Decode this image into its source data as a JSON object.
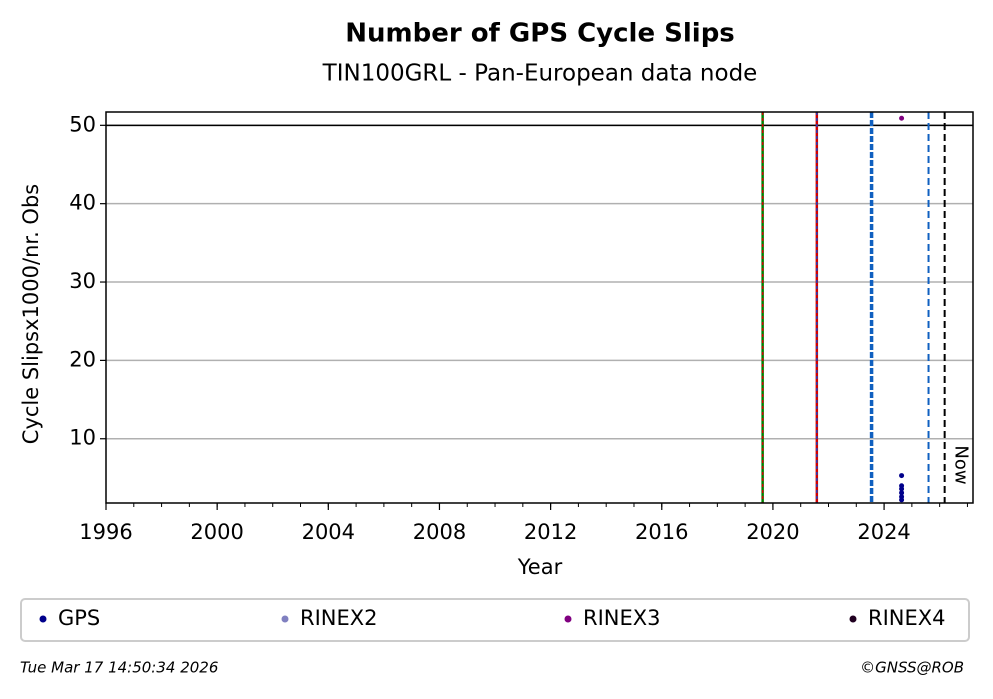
{
  "chart_data": {
    "type": "scatter",
    "title": "Number of GPS Cycle Slips",
    "subtitle": "TIN100GRL - Pan-European data node",
    "xlabel": "Year",
    "ylabel": "Cycle Slipsx1000/nr. Obs",
    "xlim": [
      1996,
      2027.2
    ],
    "ylim": [
      1.8,
      51.7
    ],
    "xticks": [
      1996,
      2000,
      2004,
      2008,
      2012,
      2016,
      2020,
      2024
    ],
    "xminor_step": 1,
    "yticks": [
      10,
      20,
      30,
      40,
      50
    ],
    "grid": true,
    "hlines": [
      50
    ],
    "vlines": [
      {
        "x": 2019.63,
        "color": "#008000",
        "dash_color": "#d00000",
        "style": "solid"
      },
      {
        "x": 2021.58,
        "color": "#d00000",
        "dash_color": "#2040c0",
        "style": "solid"
      },
      {
        "x": 2023.55,
        "color": "#1060c0",
        "style": "dashed-thick"
      },
      {
        "x": 2025.6,
        "color": "#1060c0",
        "style": "dashed"
      },
      {
        "x": 2026.18,
        "color": "#000000",
        "style": "dashed"
      }
    ],
    "now_label": "Now",
    "series": [
      {
        "name": "GPS",
        "color": "#00008b",
        "x": [
          2024.63,
          2024.63,
          2024.63,
          2024.63,
          2024.63,
          2024.63
        ],
        "values": [
          5.3,
          4.0,
          3.6,
          3.1,
          2.6,
          2.2
        ]
      },
      {
        "name": "RINEX2",
        "color": "#8080c0",
        "x": [],
        "values": []
      },
      {
        "name": "RINEX3",
        "color": "#800080",
        "x": [
          2024.63
        ],
        "values": [
          50.9
        ]
      },
      {
        "name": "RINEX4",
        "color": "#200020",
        "x": [],
        "values": []
      }
    ],
    "footer_left": "Tue Mar 17 14:50:34 2026",
    "footer_right": "©GNSS@ROB"
  }
}
